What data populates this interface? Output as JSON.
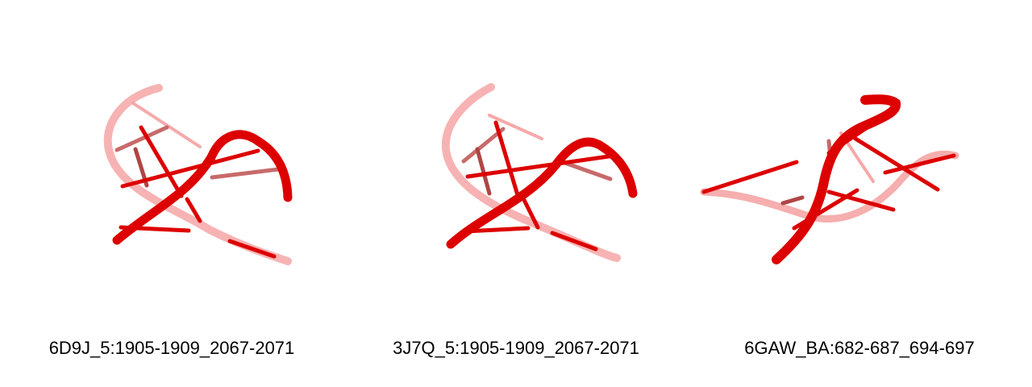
{
  "structures": [
    {
      "label": "6D9J_5:1905-1909_2067-2071",
      "icon": "rna-cartoon-icon",
      "color": "#dd0000"
    },
    {
      "label": "3J7Q_5:1905-1909_2067-2071",
      "icon": "rna-cartoon-icon",
      "color": "#dd0000"
    },
    {
      "label": "6GAW_BA:682-687_694-697",
      "icon": "rna-cartoon-icon",
      "color": "#dd0000"
    }
  ]
}
